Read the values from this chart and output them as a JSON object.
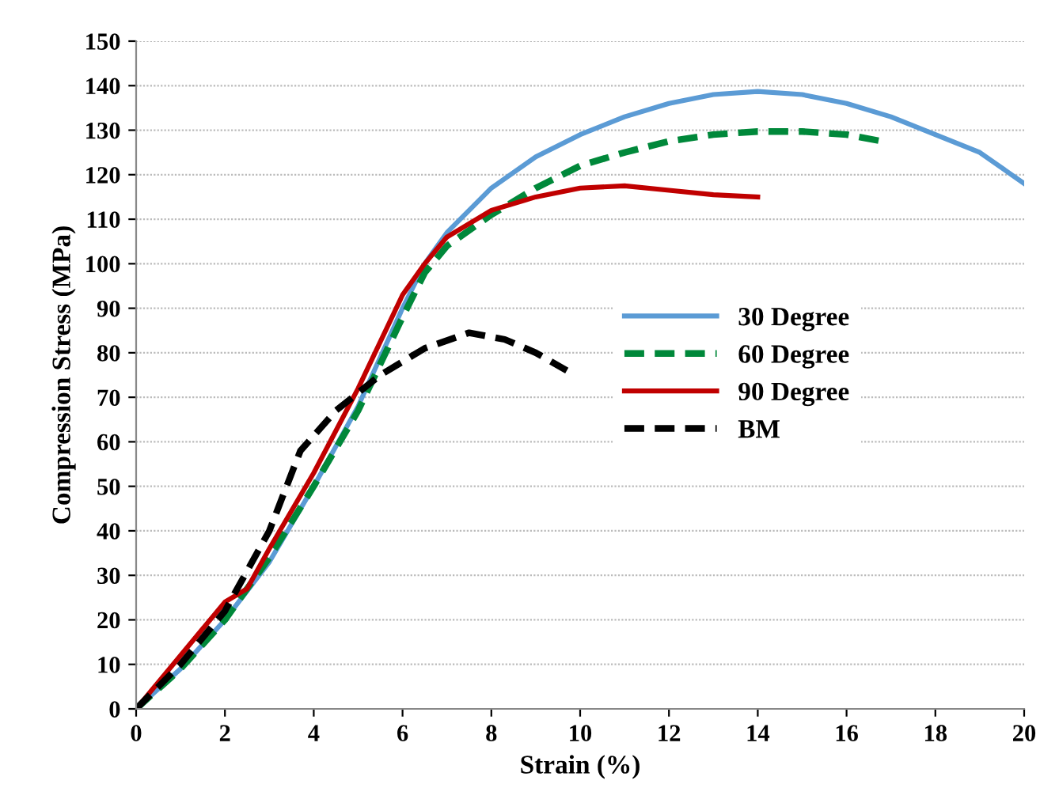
{
  "chart_data": {
    "type": "line",
    "xlabel": "Strain (%)",
    "ylabel": "Compression Stress (MPa)",
    "xlim": [
      0,
      20
    ],
    "xticks": [
      0,
      2,
      4,
      6,
      8,
      10,
      12,
      14,
      16,
      18,
      20
    ],
    "ylim": [
      0,
      150
    ],
    "yticks": [
      0,
      10,
      20,
      30,
      40,
      50,
      60,
      70,
      80,
      90,
      100,
      110,
      120,
      130,
      140,
      150
    ],
    "grid": "y",
    "legend": "right",
    "series": [
      {
        "name": "30 Degree",
        "color": "#5b9bd5",
        "line_style": "solid",
        "x": [
          0,
          1,
          2,
          3,
          4,
          5,
          6,
          6.5,
          7,
          8,
          9,
          10,
          11,
          12,
          13,
          14,
          15,
          16,
          17,
          18,
          19,
          20
        ],
        "values": [
          0,
          9,
          20,
          33,
          50,
          68,
          90,
          100,
          107,
          117,
          124,
          129,
          133,
          136,
          138,
          138.7,
          138,
          136,
          133,
          129,
          125,
          118
        ]
      },
      {
        "name": "60 Degree",
        "color": "#00883a",
        "line_style": "dashed",
        "x": [
          0,
          1,
          2,
          3,
          4,
          5,
          6,
          6.5,
          7,
          8,
          9,
          10,
          11,
          12,
          13,
          14,
          15,
          16,
          16.8
        ],
        "values": [
          0,
          9,
          20,
          34,
          50,
          67,
          88,
          98,
          104,
          111,
          117,
          122,
          125,
          127.5,
          129,
          129.7,
          129.7,
          129,
          127.5
        ]
      },
      {
        "name": "90 Degree",
        "color": "#c00000",
        "line_style": "solid",
        "x": [
          0,
          1,
          2,
          2.5,
          3,
          4,
          5,
          6,
          6.5,
          7,
          8,
          9,
          10,
          11,
          12,
          13,
          14
        ],
        "values": [
          0,
          12,
          24,
          27,
          36,
          53,
          72,
          93,
          100,
          106,
          112,
          115,
          117,
          117.5,
          116.5,
          115.5,
          115
        ]
      },
      {
        "name": "BM",
        "color": "#000000",
        "line_style": "dashed",
        "x": [
          0,
          1,
          2,
          3,
          3.7,
          4.5,
          5.5,
          6.5,
          7.5,
          8.3,
          9,
          9.7
        ],
        "values": [
          0,
          10,
          22,
          40,
          58,
          67,
          75,
          81,
          84.5,
          83,
          80,
          76
        ]
      }
    ]
  }
}
